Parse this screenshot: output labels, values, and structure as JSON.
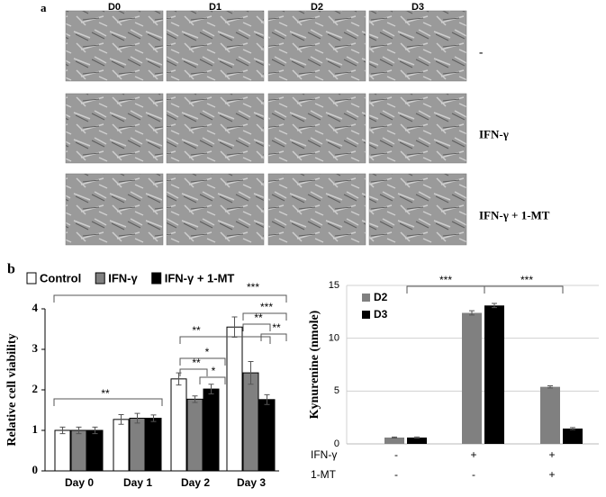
{
  "panel_a": {
    "label": "a",
    "columns": [
      "D0",
      "D1",
      "D2",
      "D3"
    ],
    "rows": [
      "-",
      "IFN-γ",
      "IFN-γ + 1-MT"
    ]
  },
  "panel_b_label": "b",
  "chart_data": [
    {
      "type": "bar",
      "ylabel": "Relative cell viability",
      "categories": [
        "Day 0",
        "Day 1",
        "Day 2",
        "Day 3"
      ],
      "series": [
        {
          "name": "Control",
          "color": "#ffffff",
          "values": [
            1.0,
            1.27,
            2.27,
            3.55
          ],
          "errors": [
            0.08,
            0.12,
            0.15,
            0.25
          ]
        },
        {
          "name": "IFN-γ",
          "color": "#808080",
          "values": [
            1.0,
            1.3,
            1.77,
            2.42
          ],
          "errors": [
            0.08,
            0.12,
            0.08,
            0.28
          ]
        },
        {
          "name": "IFN-γ + 1-MT",
          "color": "#000000",
          "values": [
            1.0,
            1.3,
            2.02,
            1.76
          ],
          "errors": [
            0.08,
            0.08,
            0.12,
            0.12
          ]
        }
      ],
      "ylim": [
        0,
        4
      ],
      "yticks": [
        0,
        1,
        2,
        3,
        4
      ],
      "grid": false,
      "legend": "top",
      "annotations": [
        "***",
        "***",
        "**",
        "**",
        "**",
        "*",
        "**",
        "*",
        "**"
      ]
    },
    {
      "type": "bar",
      "ylabel": "Kynurenine (nmole)",
      "categories": [
        null,
        null,
        null
      ],
      "series": [
        {
          "name": "D2",
          "color": "#808080",
          "values": [
            0.6,
            12.4,
            5.4
          ],
          "errors": [
            0.05,
            0.2,
            0.1
          ]
        },
        {
          "name": "D3",
          "color": "#000000",
          "values": [
            0.6,
            13.1,
            1.45
          ],
          "errors": [
            0.05,
            0.2,
            0.1
          ]
        }
      ],
      "ylim": [
        0,
        15
      ],
      "yticks": [
        0,
        5,
        10,
        15
      ],
      "grid": true,
      "legend": "top-left",
      "annotations": [
        "***",
        "***"
      ],
      "treatments": [
        {
          "name": "IFN-γ",
          "levels": [
            "-",
            "+",
            "+"
          ]
        },
        {
          "name": "1-MT",
          "levels": [
            "-",
            "-",
            "+"
          ]
        }
      ]
    }
  ]
}
